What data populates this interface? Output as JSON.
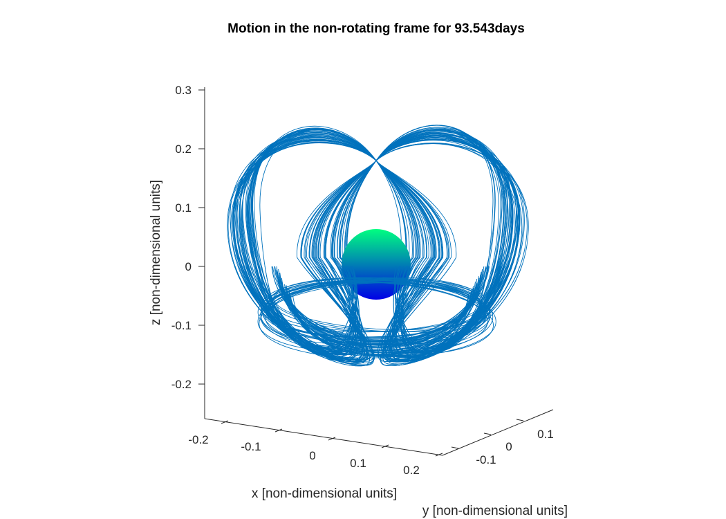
{
  "chart_data": {
    "type": "line",
    "projection": "3d",
    "title": "Motion in the non-rotating frame for 93.543days",
    "xlabel": "x [non-dimensional units]",
    "ylabel": "y [non-dimensional units]",
    "zlabel": "z [non-dimensional units]",
    "x_ticks": [
      "-0.2",
      "-0.1",
      "0",
      "0.1",
      "0.2"
    ],
    "y_ticks": [
      "-0.1",
      "0",
      "0.1"
    ],
    "z_ticks": [
      "-0.2",
      "-0.1",
      "0",
      "0.1",
      "0.2",
      "0.3"
    ],
    "x_tick_values": [
      -0.2,
      -0.1,
      0,
      0.1,
      0.2
    ],
    "y_tick_values": [
      -0.1,
      0,
      0.1
    ],
    "z_tick_values": [
      -0.2,
      -0.1,
      0,
      0.1,
      0.2,
      0.3
    ],
    "zlim": [
      -0.26,
      0.3
    ],
    "grid": false,
    "series": [
      {
        "color": "#0072BD",
        "description": "Spacecraft trajectory: many overlapping loops forming a heart-shaped envelope around the central body",
        "z_extent": [
          -0.16,
          0.235
        ]
      }
    ],
    "central_body": {
      "shape": "sphere",
      "center": [
        0,
        0,
        0
      ],
      "z_extent": [
        -0.057,
        0.062
      ],
      "color_top": "#00FF80",
      "color_bottom": "#0000E6"
    }
  }
}
